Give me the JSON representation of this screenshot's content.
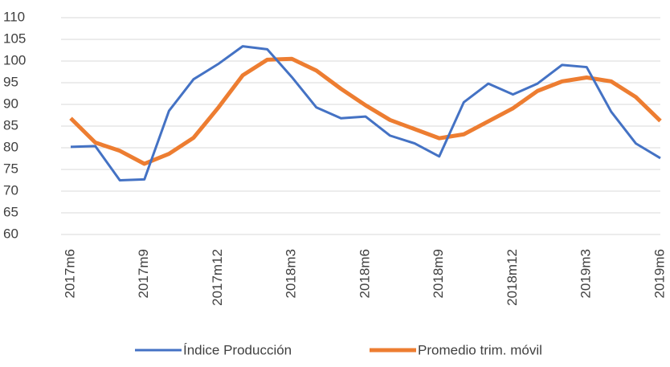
{
  "chart_data": {
    "type": "line",
    "categories": [
      "2017m6",
      null,
      null,
      "2017m9",
      null,
      null,
      "2017m12",
      null,
      null,
      "2018m3",
      null,
      null,
      "2018m6",
      null,
      null,
      "2018m9",
      null,
      null,
      "2018m12",
      null,
      null,
      "2019m3",
      null,
      null,
      "2019m6"
    ],
    "series": [
      {
        "name": "Índice Producción",
        "color": "#4472c4",
        "values": [
          80.2,
          80.4,
          72.5,
          72.7,
          88.5,
          95.8,
          99.3,
          103.4,
          102.7,
          96.3,
          89.3,
          86.8,
          87.2,
          82.8,
          81.0,
          78.0,
          90.5,
          94.8,
          92.3,
          94.8,
          99.1,
          98.6,
          88.3,
          81.0,
          77.6
        ]
      },
      {
        "name": "Promedio trim. móvil",
        "color": "#ed7d31",
        "values": [
          86.8,
          81.2,
          79.3,
          76.3,
          78.6,
          82.3,
          89.2,
          96.7,
          100.3,
          100.5,
          97.8,
          93.6,
          89.8,
          86.4,
          84.3,
          82.2,
          83.1,
          86.1,
          89.1,
          93.1,
          95.3,
          96.2,
          95.3,
          91.7,
          86.2
        ]
      }
    ],
    "ylim": [
      60,
      110
    ],
    "yticks": [
      60,
      65,
      70,
      75,
      80,
      85,
      90,
      95,
      100,
      105,
      110
    ],
    "grid": true,
    "legend": "bottom"
  }
}
